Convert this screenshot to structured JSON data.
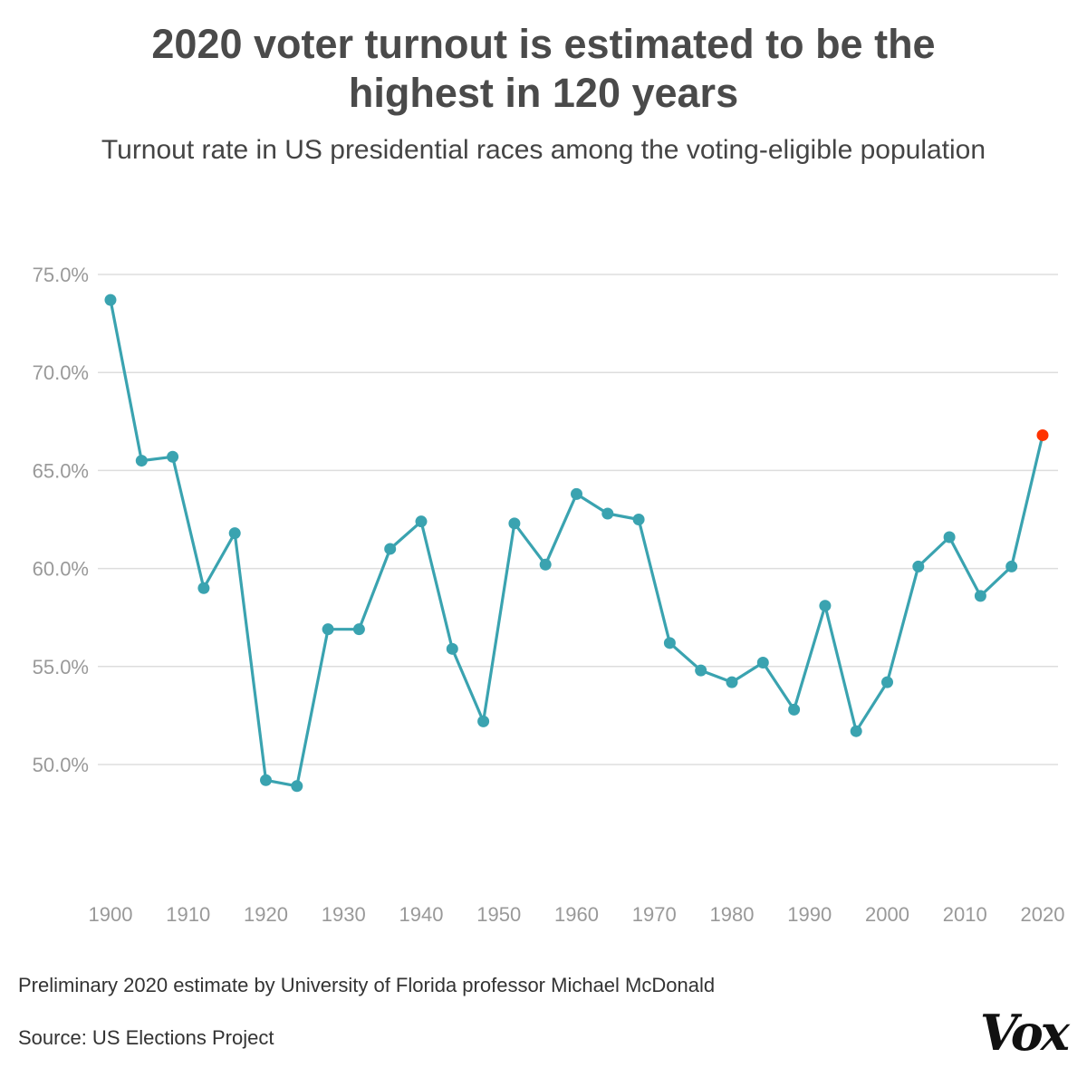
{
  "header": {
    "title_line1": "2020 voter turnout is estimated to be the",
    "title_line2": "highest in 120 years",
    "subtitle": "Turnout rate in US presidential races among the voting-eligible population"
  },
  "footer": {
    "note": "Preliminary 2020 estimate by University of Florida professor Michael McDonald",
    "source": "Source: US Elections Project",
    "logo": "Vox"
  },
  "chart_data": {
    "type": "line",
    "title": "2020 voter turnout is estimated to be the highest in 120 years",
    "subtitle": "Turnout rate in US presidential races among the voting-eligible population",
    "x": [
      1900,
      1904,
      1908,
      1912,
      1916,
      1920,
      1924,
      1928,
      1932,
      1936,
      1940,
      1944,
      1948,
      1952,
      1956,
      1960,
      1964,
      1968,
      1972,
      1976,
      1980,
      1984,
      1988,
      1992,
      1996,
      2000,
      2004,
      2008,
      2012,
      2016,
      2020
    ],
    "series": [
      {
        "values": [
          73.7,
          65.5,
          65.7,
          59.0,
          61.8,
          49.2,
          48.9,
          56.9,
          56.9,
          61.0,
          62.4,
          55.9,
          52.2,
          62.3,
          60.2,
          63.8,
          62.8,
          62.5,
          56.2,
          54.8,
          54.2,
          55.2,
          52.8,
          58.1,
          51.7,
          54.2,
          60.1,
          61.6,
          58.6,
          60.1,
          66.8
        ]
      }
    ],
    "highlight": {
      "index": 30,
      "color": "#ff3300"
    },
    "line_color": "#3aa3b0",
    "xticks": [
      1900,
      1910,
      1920,
      1930,
      1940,
      1950,
      1960,
      1970,
      1980,
      1990,
      2000,
      2010,
      2020
    ],
    "xtick_labels": [
      "1900",
      "1910",
      "1920",
      "1930",
      "1940",
      "1950",
      "1960",
      "1970",
      "1980",
      "1990",
      "2000",
      "2010",
      "2020"
    ],
    "yticks": [
      50,
      55,
      60,
      65,
      70,
      75
    ],
    "ytick_labels": [
      "50.0%",
      "55.0%",
      "60.0%",
      "65.0%",
      "70.0%",
      "75.0%"
    ],
    "xlim": [
      1900,
      2020
    ],
    "ylim": [
      47,
      75
    ],
    "grid": true,
    "legend": "none",
    "xlabel": "",
    "ylabel": ""
  }
}
